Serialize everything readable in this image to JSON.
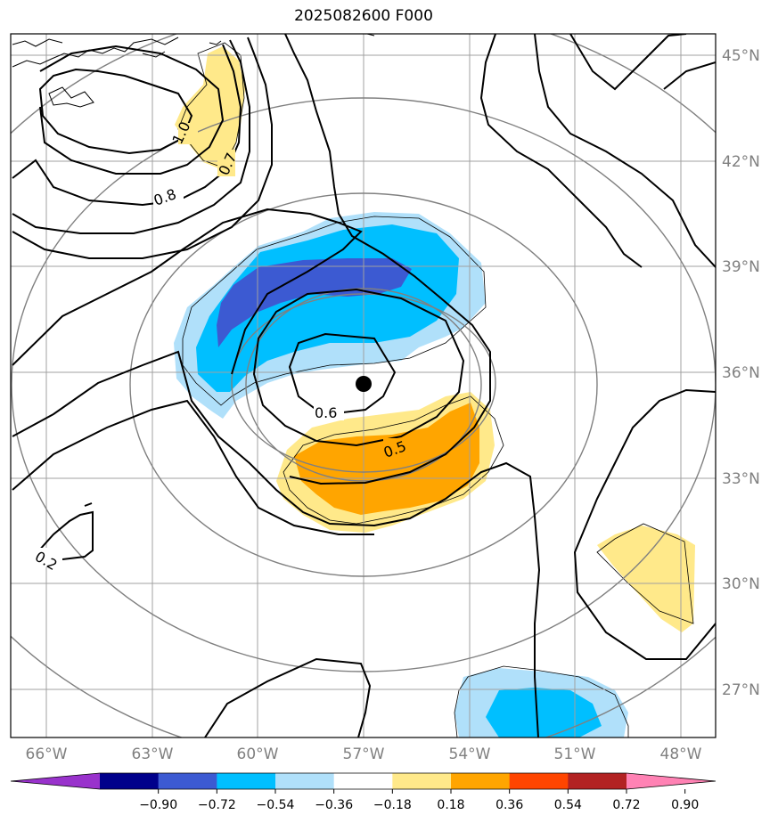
{
  "title": "2025082600 F000",
  "lat_labels": [
    "45°N",
    "42°N",
    "39°N",
    "36°N",
    "33°N",
    "30°N",
    "27°N"
  ],
  "lon_labels": [
    "66°W",
    "63°W",
    "60°W",
    "57°W",
    "54°W",
    "51°W",
    "48°W"
  ],
  "colorbar": {
    "tick_labels": [
      "−0.90",
      "−0.72",
      "−0.54",
      "−0.36",
      "−0.18",
      "0.18",
      "0.36",
      "0.54",
      "0.72",
      "0.90"
    ],
    "colors": [
      "#9932cc",
      "#00008b",
      "#3c5ad2",
      "#00bfff",
      "#b0e0fa",
      "#ffffff",
      "#ffe98a",
      "#ffa500",
      "#ff4500",
      "#b22222",
      "#ff82b4"
    ]
  },
  "contour_labels": [
    "1.0",
    "0.7",
    "0.8",
    "0.6",
    "0.5",
    "0.2"
  ],
  "center_marker": {
    "lat": 35.6,
    "lon": -57.0
  },
  "colors": {
    "blue_light": "#b0e0fa",
    "blue_mid": "#00bfff",
    "blue_dark": "#3c5ad2",
    "yellow": "#ffe98a",
    "orange": "#ffa500",
    "grid": "#a0a0a0",
    "range_ring": "#808080"
  }
}
